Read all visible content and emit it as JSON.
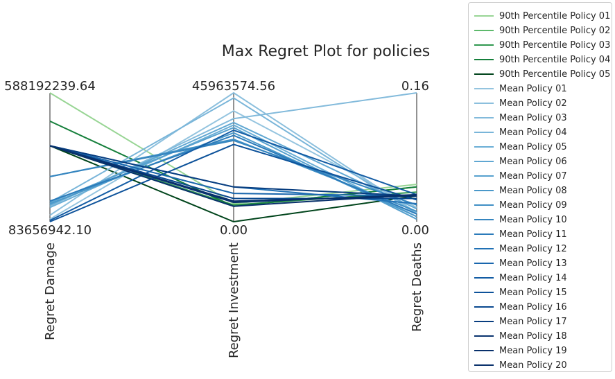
{
  "chart_data": {
    "type": "parallel_coordinates",
    "title": "Max Regret Plot for policies",
    "axes": [
      {
        "name": "Regret Damage",
        "max_label": "588192239.64",
        "min_label": "83656942.10",
        "range": [
          83656942.1,
          588192239.64
        ]
      },
      {
        "name": "Regret Investment",
        "max_label": "45963574.56",
        "min_label": "0.00",
        "range": [
          0.0,
          45963574.56
        ]
      },
      {
        "name": "Regret Deaths",
        "max_label": "0.16",
        "min_label": "0.00",
        "range": [
          0.0,
          0.16
        ]
      }
    ],
    "normalized": true,
    "series": [
      {
        "name": "90th Percentile Policy 01",
        "color": "#98d594",
        "values": [
          1.0,
          0.14,
          0.29
        ]
      },
      {
        "name": "90th Percentile Policy 02",
        "color": "#5db96b",
        "values": [
          0.59,
          0.12,
          0.27
        ]
      },
      {
        "name": "90th Percentile Policy 03",
        "color": "#2f984f",
        "values": [
          0.59,
          0.13,
          0.23
        ]
      },
      {
        "name": "90th Percentile Policy 04",
        "color": "#157f3b",
        "values": [
          0.78,
          0.12,
          0.27
        ]
      },
      {
        "name": "90th Percentile Policy 05",
        "color": "#00441b",
        "values": [
          0.59,
          0.0,
          0.2
        ]
      },
      {
        "name": "Mean Policy 01",
        "color": "#94c4df",
        "values": [
          0.02,
          0.86,
          0.11
        ]
      },
      {
        "name": "Mean Policy 02",
        "color": "#8bbfdd",
        "values": [
          0.05,
          1.0,
          0.07
        ]
      },
      {
        "name": "Mean Policy 03",
        "color": "#82badb",
        "values": [
          0.12,
          0.8,
          1.0
        ]
      },
      {
        "name": "Mean Policy 04",
        "color": "#79b5d9",
        "values": [
          0.15,
          0.96,
          0.06
        ]
      },
      {
        "name": "Mean Policy 05",
        "color": "#6aaed6",
        "values": [
          0.11,
          0.75,
          0.04
        ]
      },
      {
        "name": "Mean Policy 06",
        "color": "#60a7d2",
        "values": [
          0.13,
          0.77,
          0.1
        ]
      },
      {
        "name": "Mean Policy 07",
        "color": "#56a0ce",
        "values": [
          0.15,
          0.73,
          0.02
        ]
      },
      {
        "name": "Mean Policy 08",
        "color": "#4a98c9",
        "values": [
          0.14,
          0.69,
          0.04
        ]
      },
      {
        "name": "Mean Policy 09",
        "color": "#3f8fc5",
        "values": [
          0.35,
          0.64,
          0.08
        ]
      },
      {
        "name": "Mean Policy 10",
        "color": "#3585bf",
        "values": [
          0.35,
          0.63,
          0.13
        ]
      },
      {
        "name": "Mean Policy 11",
        "color": "#2b7bba",
        "values": [
          0.16,
          0.67,
          0.06
        ]
      },
      {
        "name": "Mean Policy 12",
        "color": "#2171b5",
        "values": [
          0.59,
          0.27,
          0.14
        ]
      },
      {
        "name": "Mean Policy 13",
        "color": "#1966ad",
        "values": [
          0.59,
          0.22,
          0.2
        ]
      },
      {
        "name": "Mean Policy 14",
        "color": "#135ca4",
        "values": [
          0.01,
          0.71,
          0.21
        ]
      },
      {
        "name": "Mean Policy 15",
        "color": "#0d529a",
        "values": [
          0.0,
          0.6,
          0.17
        ]
      },
      {
        "name": "Mean Policy 16",
        "color": "#08488e",
        "values": [
          0.59,
          0.18,
          0.18
        ]
      },
      {
        "name": "Mean Policy 17",
        "color": "#083d7f",
        "values": [
          0.59,
          0.27,
          0.2
        ]
      },
      {
        "name": "Mean Policy 18",
        "color": "#08326e",
        "values": [
          0.59,
          0.15,
          0.21
        ]
      },
      {
        "name": "Mean Policy 19",
        "color": "#08306b",
        "values": [
          0.59,
          0.16,
          0.2
        ]
      },
      {
        "name": "Mean Policy 20",
        "color": "#08306b",
        "values": [
          0.59,
          0.12,
          0.21
        ]
      }
    ],
    "legend_placement": "right, outside",
    "grid": false
  }
}
